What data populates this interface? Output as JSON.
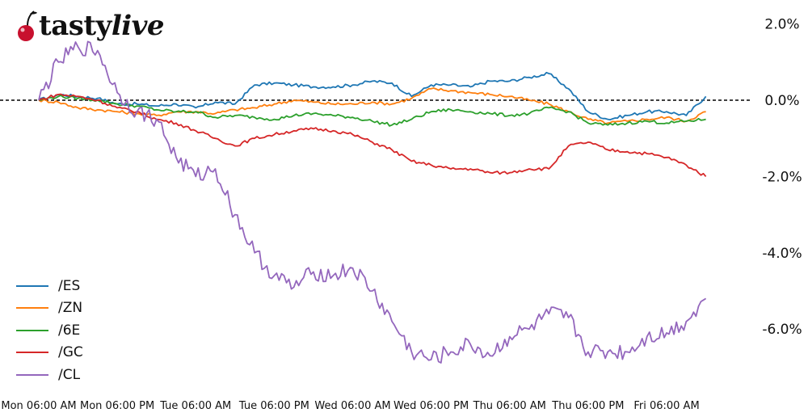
{
  "brand": {
    "name_part1": "tasty",
    "name_part2": "live",
    "logo_icon": "cherry-icon"
  },
  "chart_data": {
    "type": "line",
    "title": "",
    "xlabel": "",
    "ylabel": "",
    "x_ticks": [
      "Mon 06:00 AM",
      "Mon 06:00 PM",
      "Tue 06:00 AM",
      "Tue 06:00 PM",
      "Wed 06:00 AM",
      "Wed 06:00 PM",
      "Thu 06:00 AM",
      "Thu 06:00 PM",
      "Fri 06:00 AM"
    ],
    "y_ticks": [
      2.0,
      0.0,
      -2.0,
      -4.0,
      -6.0
    ],
    "y_tick_labels": [
      "2.0%",
      "0.0%",
      "-2.0%",
      "-4.0%",
      "-6.0%"
    ],
    "ylim": [
      -7.5,
      2.5
    ],
    "xlim": [
      0,
      8.7
    ],
    "y_axis_position": "right",
    "zero_line": "dashed",
    "grid": false,
    "legend_position": "bottom-left",
    "x": [
      0,
      0.25,
      0.5,
      0.75,
      1,
      1.25,
      1.5,
      1.75,
      2,
      2.25,
      2.5,
      2.75,
      3,
      3.25,
      3.5,
      3.75,
      4,
      4.25,
      4.5,
      4.75,
      5,
      5.25,
      5.5,
      5.75,
      6,
      6.25,
      6.5,
      6.75,
      7,
      7.25,
      7.5,
      7.75,
      8,
      8.25,
      8.5
    ],
    "series": [
      {
        "name": "/ES",
        "color": "#1f77b4",
        "values": [
          0,
          0.15,
          0.1,
          0.05,
          -0.1,
          -0.1,
          -0.15,
          -0.1,
          -0.2,
          -0.05,
          -0.1,
          0.4,
          0.45,
          0.4,
          0.35,
          0.35,
          0.4,
          0.5,
          0.45,
          0.1,
          0.4,
          0.4,
          0.35,
          0.5,
          0.5,
          0.6,
          0.7,
          0.3,
          -0.3,
          -0.5,
          -0.4,
          -0.3,
          -0.3,
          -0.4,
          0.1
        ]
      },
      {
        "name": "/ZN",
        "color": "#ff7f0e",
        "values": [
          0,
          -0.05,
          -0.2,
          -0.25,
          -0.3,
          -0.35,
          -0.4,
          -0.3,
          -0.3,
          -0.35,
          -0.25,
          -0.2,
          -0.1,
          0.0,
          -0.05,
          -0.1,
          -0.1,
          -0.05,
          -0.1,
          0.05,
          0.3,
          0.25,
          0.2,
          0.15,
          0.1,
          0.0,
          -0.1,
          -0.3,
          -0.5,
          -0.6,
          -0.55,
          -0.5,
          -0.45,
          -0.55,
          -0.3
        ]
      },
      {
        "name": "/6E",
        "color": "#2ca02c",
        "values": [
          0,
          0.1,
          0.05,
          0.0,
          -0.1,
          -0.15,
          -0.25,
          -0.3,
          -0.3,
          -0.45,
          -0.4,
          -0.45,
          -0.5,
          -0.4,
          -0.35,
          -0.4,
          -0.45,
          -0.55,
          -0.65,
          -0.5,
          -0.3,
          -0.25,
          -0.3,
          -0.35,
          -0.4,
          -0.35,
          -0.2,
          -0.3,
          -0.6,
          -0.65,
          -0.6,
          -0.55,
          -0.6,
          -0.55,
          -0.5
        ]
      },
      {
        "name": "/GC",
        "color": "#d62728",
        "values": [
          0,
          0.15,
          0.1,
          0.0,
          -0.2,
          -0.3,
          -0.5,
          -0.6,
          -0.8,
          -1.0,
          -1.2,
          -1.0,
          -0.9,
          -0.8,
          -0.75,
          -0.8,
          -0.9,
          -1.1,
          -1.3,
          -1.6,
          -1.7,
          -1.8,
          -1.8,
          -1.9,
          -1.9,
          -1.8,
          -1.8,
          -1.2,
          -1.1,
          -1.3,
          -1.35,
          -1.4,
          -1.5,
          -1.7,
          -2.0
        ]
      },
      {
        "name": "/CL",
        "color": "#9467bd",
        "values": [
          0,
          1.0,
          1.4,
          1.3,
          0.2,
          -0.3,
          -0.5,
          -1.5,
          -2.0,
          -1.8,
          -3.0,
          -4.0,
          -4.6,
          -4.9,
          -4.5,
          -4.6,
          -4.4,
          -5.0,
          -5.8,
          -6.6,
          -6.8,
          -6.6,
          -6.4,
          -6.7,
          -6.2,
          -6.0,
          -5.6,
          -5.7,
          -6.6,
          -6.6,
          -6.6,
          -6.2,
          -6.1,
          -5.8,
          -5.2
        ]
      }
    ]
  }
}
